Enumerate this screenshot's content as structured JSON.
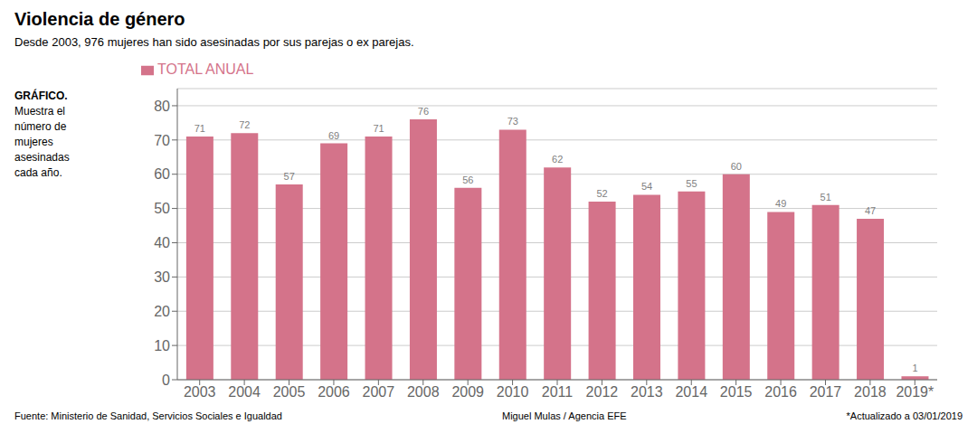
{
  "chart_data": {
    "type": "bar",
    "title": "Violencia de género",
    "subtitle": "Desde 2003, 976 mujeres han sido asesinadas por sus parejas o ex parejas.",
    "categories": [
      "2003",
      "2004",
      "2005",
      "2006",
      "2007",
      "2008",
      "2009",
      "2010",
      "2011",
      "2012",
      "2013",
      "2014",
      "2015",
      "2016",
      "2017",
      "2018",
      "2019*"
    ],
    "series": [
      {
        "name": "TOTAL ANUAL",
        "color": "#d4738a",
        "values": [
          71,
          72,
          57,
          69,
          71,
          76,
          56,
          73,
          62,
          52,
          54,
          55,
          60,
          49,
          51,
          47,
          1
        ]
      }
    ],
    "ylim": [
      0,
      85
    ],
    "yticks": [
      0,
      10,
      20,
      30,
      40,
      50,
      60,
      70,
      80
    ],
    "grid": true,
    "legend": "top",
    "data_labels": true,
    "annotations": [
      "GRÁFICO.",
      "Muestra el",
      "número de",
      "mujeres",
      "asesinadas",
      "cada año.",
      "Fuente: Ministerio de Sanidad, Servicios Sociales e Igualdad",
      "Miguel Mulas / Agencia EFE",
      "*Actualizado a 03/01/2019"
    ]
  }
}
